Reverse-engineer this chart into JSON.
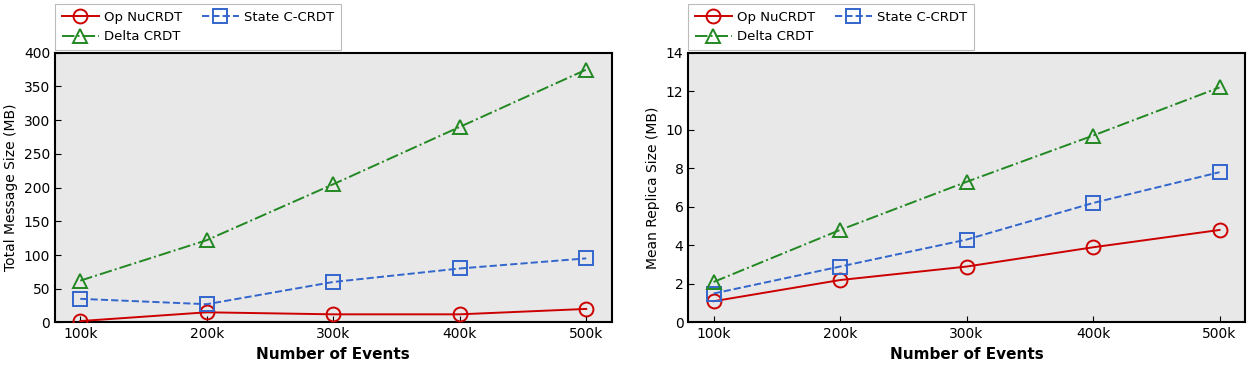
{
  "x_values": [
    100000,
    200000,
    300000,
    400000,
    500000
  ],
  "x_tick_labels": [
    "100k",
    "200k",
    "300k",
    "400k",
    "500k"
  ],
  "left": {
    "ylabel": "Total Message Size (MB)",
    "xlabel": "Number of Events",
    "ylim": [
      0,
      400
    ],
    "yticks": [
      0,
      50,
      100,
      150,
      200,
      250,
      300,
      350,
      400
    ],
    "op_nucrdt": [
      2,
      15,
      12,
      12,
      20
    ],
    "state_ccrdt": [
      35,
      27,
      60,
      80,
      95
    ],
    "delta_crdt": [
      62,
      122,
      205,
      290,
      375
    ]
  },
  "right": {
    "ylabel": "Mean Replica Size (MB)",
    "xlabel": "Number of Events",
    "ylim": [
      0,
      14
    ],
    "yticks": [
      0,
      2,
      4,
      6,
      8,
      10,
      12,
      14
    ],
    "op_nucrdt": [
      1.1,
      2.2,
      2.9,
      3.9,
      4.8
    ],
    "state_ccrdt": [
      1.5,
      2.9,
      4.3,
      6.2,
      7.8
    ],
    "delta_crdt": [
      2.1,
      4.8,
      7.3,
      9.7,
      12.2
    ]
  },
  "colors": {
    "op_nucrdt": "#cc0000",
    "state_ccrdt": "#3366cc",
    "delta_crdt": "#228822"
  },
  "legend_labels": {
    "op_nucrdt": "Op NuCRDT",
    "state_ccrdt": "State C-CRDT",
    "delta_crdt": "Delta CRDT"
  }
}
